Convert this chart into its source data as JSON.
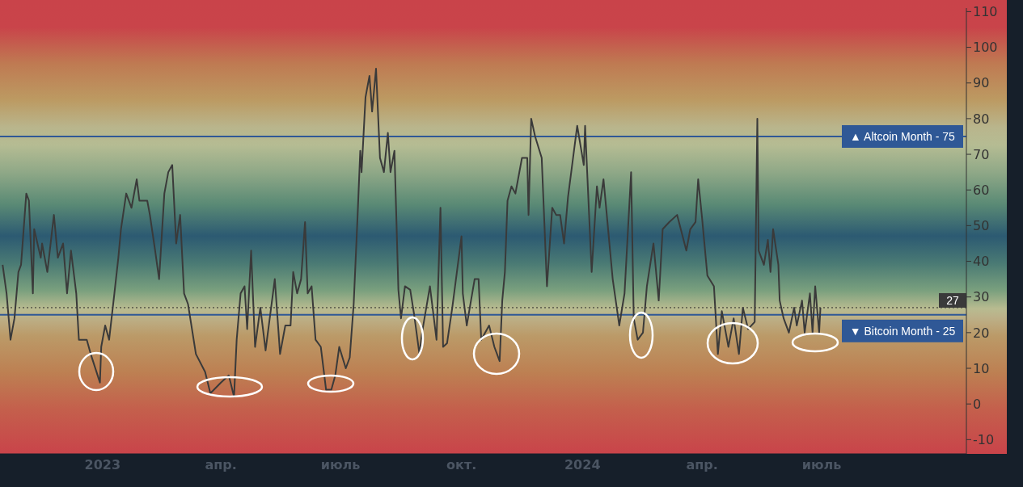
{
  "chart_data": {
    "type": "line",
    "x": [
      "2022-10-17",
      "2022-10-20",
      "2022-10-23",
      "2022-10-26",
      "2022-10-29",
      "2022-10-31",
      "2022-11-04",
      "2022-11-06",
      "2022-11-09",
      "2022-11-10",
      "2022-11-15",
      "2022-11-16",
      "2022-11-20",
      "2022-11-25",
      "2022-11-28",
      "2022-12-02",
      "2022-12-05",
      "2022-12-08",
      "2022-12-12",
      "2022-12-14",
      "2022-12-20",
      "2022-12-23",
      "2022-12-30",
      "2022-12-31",
      "2023-01-03",
      "2023-01-06",
      "2023-01-10",
      "2023-01-13",
      "2023-01-15",
      "2023-01-19",
      "2023-01-23",
      "2023-01-27",
      "2023-01-29",
      "2023-02-04",
      "2023-02-06",
      "2023-02-10",
      "2023-02-13",
      "2023-02-17",
      "2023-02-20",
      "2023-02-23",
      "2023-02-26",
      "2023-03-01",
      "2023-03-04",
      "2023-03-07",
      "2023-03-13",
      "2023-03-20",
      "2023-03-24",
      "2023-04-01",
      "2023-04-07",
      "2023-04-11",
      "2023-04-13",
      "2023-04-16",
      "2023-04-19",
      "2023-04-21",
      "2023-04-24",
      "2023-04-27",
      "2023-05-01",
      "2023-05-05",
      "2023-05-12",
      "2023-05-16",
      "2023-05-20",
      "2023-05-24",
      "2023-05-26",
      "2023-05-29",
      "2023-06-01",
      "2023-06-04",
      "2023-06-06",
      "2023-06-09",
      "2023-06-12",
      "2023-06-16",
      "2023-06-20",
      "2023-06-24",
      "2023-06-27",
      "2023-06-30",
      "2023-07-05",
      "2023-07-08",
      "2023-07-11",
      "2023-07-14",
      "2023-07-16",
      "2023-07-17",
      "2023-07-20",
      "2023-07-23",
      "2023-07-25",
      "2023-07-28",
      "2023-07-31",
      "2023-08-03",
      "2023-08-06",
      "2023-08-08",
      "2023-08-11",
      "2023-08-14",
      "2023-08-16",
      "2023-08-19",
      "2023-08-23",
      "2023-08-26",
      "2023-08-30",
      "2023-09-01",
      "2023-09-07",
      "2023-09-12",
      "2023-09-15",
      "2023-09-17",
      "2023-09-20",
      "2023-09-24",
      "2023-10-01",
      "2023-10-02",
      "2023-10-05",
      "2023-10-11",
      "2023-10-14",
      "2023-10-16",
      "2023-10-22",
      "2023-10-26",
      "2023-10-30",
      "2023-11-01",
      "2023-11-03",
      "2023-11-05",
      "2023-11-08",
      "2023-11-11",
      "2023-11-16",
      "2023-11-20",
      "2023-11-21",
      "2023-11-23",
      "2023-11-26",
      "2023-12-01",
      "2023-12-03",
      "2023-12-05",
      "2023-12-09",
      "2023-12-12",
      "2023-12-15",
      "2023-12-18",
      "2023-12-21",
      "2023-12-28",
      "2024-01-02",
      "2024-01-03",
      "2024-01-08",
      "2024-01-12",
      "2024-01-14",
      "2024-01-17",
      "2024-01-21",
      "2024-01-24",
      "2024-01-29",
      "2024-02-02",
      "2024-02-07",
      "2024-02-09",
      "2024-02-12",
      "2024-02-16",
      "2024-02-19",
      "2024-02-24",
      "2024-02-28",
      "2024-03-02",
      "2024-03-07",
      "2024-03-13",
      "2024-03-20",
      "2024-03-23",
      "2024-03-27",
      "2024-03-29",
      "2024-04-01",
      "2024-04-05",
      "2024-04-10",
      "2024-04-13",
      "2024-04-16",
      "2024-04-21",
      "2024-04-25",
      "2024-04-29",
      "2024-05-02",
      "2024-05-06",
      "2024-05-11",
      "2024-05-13",
      "2024-05-14",
      "2024-05-18",
      "2024-05-21",
      "2024-05-23",
      "2024-05-25",
      "2024-05-29",
      "2024-05-30",
      "2024-06-02",
      "2024-06-06",
      "2024-06-10",
      "2024-06-12",
      "2024-06-16",
      "2024-06-18",
      "2024-06-22",
      "2024-06-24",
      "2024-06-26",
      "2024-06-29",
      "2024-06-30"
    ],
    "series": [
      {
        "color": "#3a3a3a",
        "values": [
          39,
          31,
          18,
          24,
          37,
          39,
          59,
          57,
          31,
          49,
          41,
          45,
          37,
          53,
          41,
          45,
          31,
          43,
          31,
          18,
          18,
          14,
          6,
          16,
          22,
          18,
          31,
          41,
          49,
          59,
          55,
          63,
          57,
          57,
          53,
          43,
          35,
          59,
          65,
          67,
          45,
          53,
          31,
          28,
          14,
          9,
          3,
          6,
          8,
          2,
          18,
          31,
          33,
          21,
          43,
          16,
          27,
          15,
          35,
          14,
          22,
          22,
          37,
          31,
          35,
          51,
          31,
          33,
          18,
          16,
          4,
          4,
          8,
          16,
          10,
          13,
          28,
          53,
          71,
          65,
          86,
          92,
          82,
          94,
          69,
          65,
          76,
          65,
          71,
          32,
          24,
          33,
          32,
          25,
          14,
          20,
          33,
          18,
          55,
          16,
          17,
          27,
          47,
          31,
          22,
          35,
          35,
          18,
          22,
          16,
          12,
          29,
          37,
          57,
          61,
          59,
          69,
          69,
          53,
          80,
          75,
          69,
          51,
          33,
          55,
          53,
          53,
          45,
          58,
          78,
          67,
          78,
          37,
          61,
          55,
          63,
          47,
          35,
          22,
          31,
          65,
          24,
          18,
          20,
          33,
          45,
          29,
          49,
          51,
          53,
          43,
          49,
          51,
          63,
          52,
          36,
          33,
          14,
          26,
          16,
          24,
          14,
          27,
          21,
          23,
          80,
          43,
          39,
          46,
          37,
          49,
          39,
          29,
          24,
          20,
          27,
          22,
          29,
          20,
          31,
          20,
          33,
          20,
          27
        ]
      }
    ],
    "ylim": [
      -14,
      111
    ],
    "yticks": [
      -10,
      0,
      10,
      20,
      30,
      40,
      50,
      60,
      70,
      80,
      90,
      100,
      110
    ],
    "xlim": [
      "2022-10-15",
      "2024-10-19"
    ],
    "xticks": [
      {
        "value": "2023-01-01",
        "label": "2023"
      },
      {
        "value": "2023-04-01",
        "label": "апр."
      },
      {
        "value": "2023-07-01",
        "label": "июль"
      },
      {
        "value": "2023-10-01",
        "label": "окт."
      },
      {
        "value": "2024-01-01",
        "label": "2024"
      },
      {
        "value": "2024-04-01",
        "label": "апр."
      },
      {
        "value": "2024-07-01",
        "label": "июль"
      }
    ],
    "ref_lines": [
      {
        "axis": "y",
        "value": 75,
        "label": "▲ Altcoin Month - 75",
        "color": "#2f5896",
        "line_style": "solid"
      },
      {
        "axis": "y",
        "value": 25,
        "label": "▼ Bitcoin Month - 25",
        "color": "#2f5896",
        "line_style": "solid"
      },
      {
        "axis": "y",
        "value": 27,
        "label": "27",
        "color": "#2a2a2a",
        "line_style": "dotted"
      }
    ],
    "grid": false,
    "legend": false,
    "marker": "none",
    "line_style": "solid"
  }
}
